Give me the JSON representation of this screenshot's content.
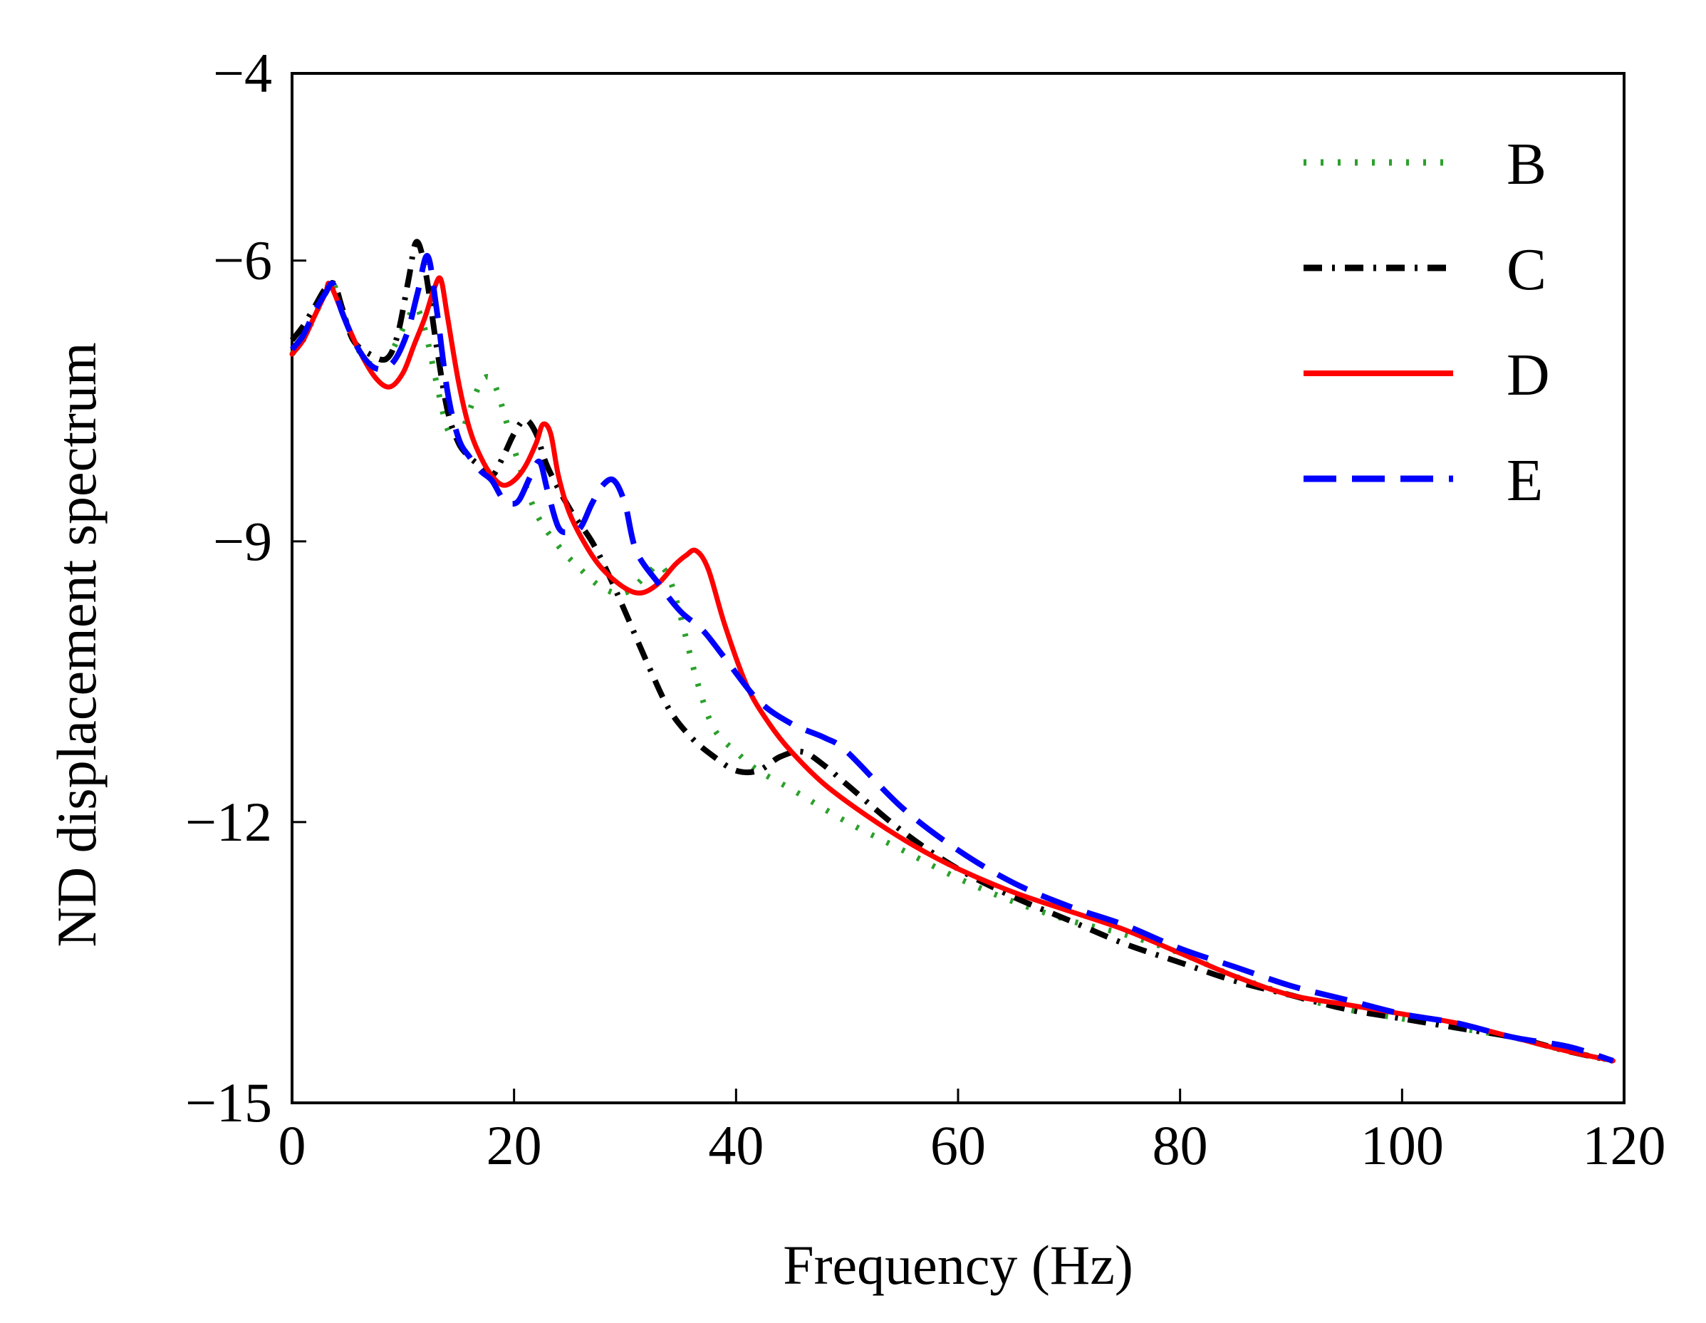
{
  "chart_data": {
    "type": "line",
    "title": "",
    "xlabel": "Frequency (Hz)",
    "ylabel": "ND displacement spectrum",
    "xlim": [
      0,
      120
    ],
    "ylim": [
      -15,
      -4
    ],
    "xticks": [
      0,
      20,
      40,
      60,
      80,
      100,
      120
    ],
    "xtick_labels": [
      "0",
      "20",
      "40",
      "60",
      "80",
      "100",
      "120"
    ],
    "yticks": [
      -4,
      -6,
      -9,
      -12,
      -15
    ],
    "ytick_labels": [
      "−4",
      "−6",
      "−9",
      "−12",
      "−15"
    ],
    "grid": false,
    "legend_position": "top-right",
    "series": [
      {
        "name": "B",
        "color": "#2ca02c",
        "dash": "dotted",
        "x": [
          0,
          1,
          2,
          3,
          3.7,
          4.5,
          5.5,
          7,
          8.5,
          9.5,
          10.5,
          11.2,
          12,
          13,
          14,
          15,
          16,
          17,
          17.8,
          18.5,
          19.5,
          20.5,
          22,
          24,
          26,
          28,
          30,
          32,
          33,
          34,
          35,
          36.5,
          38,
          40,
          42,
          45,
          50,
          55,
          60,
          65,
          70,
          75,
          80,
          85,
          90,
          95,
          100,
          105,
          110,
          115,
          119
        ],
        "y": [
          -7.0,
          -6.85,
          -6.6,
          -6.35,
          -6.25,
          -6.5,
          -6.85,
          -7.1,
          -7.05,
          -6.85,
          -6.6,
          -6.5,
          -6.75,
          -7.3,
          -7.8,
          -7.9,
          -7.6,
          -7.3,
          -7.25,
          -7.4,
          -7.8,
          -8.2,
          -8.7,
          -9.05,
          -9.3,
          -9.5,
          -9.55,
          -9.35,
          -9.25,
          -9.4,
          -9.8,
          -10.5,
          -11.0,
          -11.25,
          -11.45,
          -11.65,
          -12.0,
          -12.3,
          -12.6,
          -12.85,
          -13.05,
          -13.2,
          -13.4,
          -13.65,
          -13.85,
          -14.0,
          -14.1,
          -14.2,
          -14.3,
          -14.45,
          -14.55
        ]
      },
      {
        "name": "C",
        "color": "#000000",
        "dash": "dashdot",
        "x": [
          0,
          1,
          2,
          3,
          3.8,
          4.5,
          5.5,
          7,
          8.5,
          9.5,
          10.5,
          11.2,
          12,
          13,
          14,
          15,
          16,
          17,
          18,
          19,
          20,
          21,
          22,
          23,
          25,
          27,
          28.5,
          30,
          32,
          34,
          36,
          38,
          40,
          42,
          44,
          46,
          48,
          50,
          55,
          60,
          65,
          70,
          75,
          80,
          85,
          90,
          95,
          100,
          105,
          110,
          115,
          119
        ],
        "y": [
          -6.85,
          -6.7,
          -6.5,
          -6.3,
          -6.25,
          -6.5,
          -6.85,
          -7.0,
          -7.05,
          -6.8,
          -6.2,
          -5.8,
          -6.1,
          -6.9,
          -7.6,
          -7.95,
          -8.1,
          -8.2,
          -8.3,
          -8.1,
          -7.85,
          -7.7,
          -7.85,
          -8.2,
          -8.65,
          -9.0,
          -9.35,
          -9.75,
          -10.3,
          -10.8,
          -11.1,
          -11.3,
          -11.45,
          -11.45,
          -11.3,
          -11.25,
          -11.4,
          -11.6,
          -12.1,
          -12.5,
          -12.8,
          -13.05,
          -13.3,
          -13.5,
          -13.7,
          -13.85,
          -14.0,
          -14.1,
          -14.2,
          -14.3,
          -14.45,
          -14.55
        ]
      },
      {
        "name": "D",
        "color": "#ff0000",
        "dash": "solid",
        "x": [
          0,
          1,
          2,
          3,
          3.4,
          4.5,
          6,
          7.5,
          8.8,
          10,
          11,
          12,
          12.8,
          13.4,
          14,
          15,
          16,
          17,
          18,
          19,
          20,
          21,
          22,
          22.6,
          23.3,
          24,
          25,
          26.5,
          28,
          30,
          31.5,
          33,
          34.5,
          35.5,
          36.4,
          37.5,
          39,
          41,
          43,
          45,
          48,
          52,
          56,
          60,
          65,
          70,
          75,
          80,
          85,
          90,
          95,
          100,
          105,
          110,
          115,
          119
        ],
        "y": [
          -7.0,
          -6.85,
          -6.6,
          -6.35,
          -6.25,
          -6.55,
          -6.95,
          -7.25,
          -7.35,
          -7.2,
          -6.9,
          -6.6,
          -6.3,
          -6.2,
          -6.6,
          -7.3,
          -7.8,
          -8.1,
          -8.3,
          -8.4,
          -8.35,
          -8.2,
          -7.95,
          -7.75,
          -7.85,
          -8.3,
          -8.7,
          -9.05,
          -9.3,
          -9.5,
          -9.55,
          -9.45,
          -9.25,
          -9.15,
          -9.1,
          -9.3,
          -9.9,
          -10.55,
          -10.95,
          -11.25,
          -11.6,
          -11.95,
          -12.25,
          -12.5,
          -12.75,
          -12.95,
          -13.15,
          -13.4,
          -13.65,
          -13.85,
          -13.95,
          -14.05,
          -14.15,
          -14.3,
          -14.45,
          -14.55
        ]
      },
      {
        "name": "E",
        "color": "#0000ff",
        "dash": "dashed",
        "x": [
          0,
          1,
          2,
          3,
          3.7,
          4.5,
          6,
          7.5,
          9,
          10.3,
          11.3,
          12.2,
          13,
          14,
          15,
          16,
          17,
          18,
          19,
          19.8,
          20.5,
          21.5,
          22.3,
          23,
          24,
          25,
          26,
          27,
          28,
          29,
          30,
          31,
          33,
          35,
          37,
          39,
          42,
          45,
          48,
          50,
          55,
          60,
          65,
          70,
          75,
          80,
          85,
          90,
          95,
          100,
          105,
          110,
          115,
          119
        ],
        "y": [
          -6.95,
          -6.8,
          -6.55,
          -6.35,
          -6.25,
          -6.55,
          -6.95,
          -7.15,
          -7.1,
          -6.8,
          -6.35,
          -5.95,
          -6.5,
          -7.4,
          -7.9,
          -8.1,
          -8.25,
          -8.35,
          -8.55,
          -8.6,
          -8.55,
          -8.3,
          -8.15,
          -8.45,
          -8.85,
          -8.9,
          -8.85,
          -8.6,
          -8.4,
          -8.35,
          -8.6,
          -9.1,
          -9.45,
          -9.75,
          -9.95,
          -10.25,
          -10.7,
          -10.95,
          -11.1,
          -11.25,
          -11.85,
          -12.3,
          -12.65,
          -12.9,
          -13.1,
          -13.35,
          -13.55,
          -13.75,
          -13.9,
          -14.05,
          -14.15,
          -14.3,
          -14.4,
          -14.55
        ]
      }
    ]
  }
}
